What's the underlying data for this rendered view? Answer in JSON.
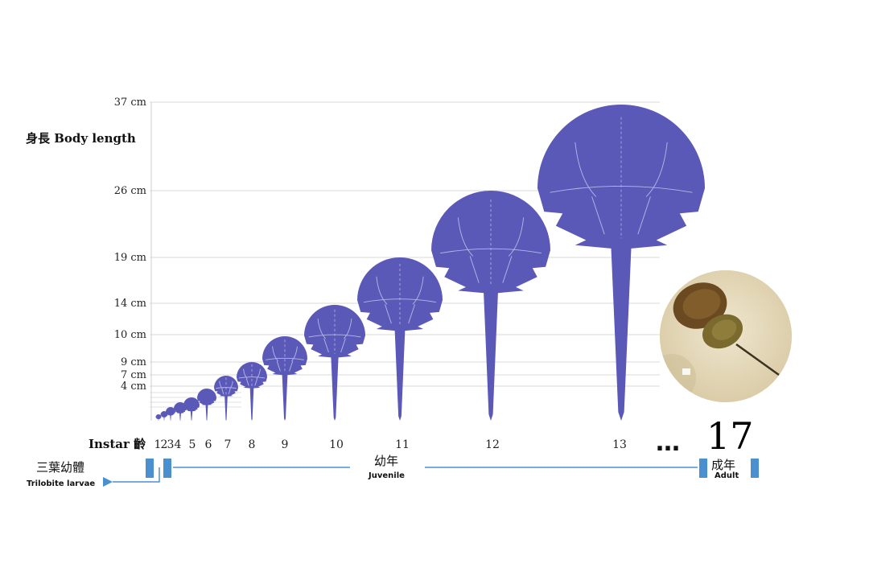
{
  "colors": {
    "crab": "#5b59b8",
    "timeline": "#4a90d0",
    "grid": "#d8d8d8"
  },
  "chart_data": {
    "type": "scatter",
    "title": "",
    "ylabel": "身長 Body length",
    "xlabel": "Instar 齡",
    "y_ticks": [
      {
        "value": 37,
        "label": "37 cm"
      },
      {
        "value": 26,
        "label": "26 cm"
      },
      {
        "value": 19,
        "label": "19 cm"
      },
      {
        "value": 14,
        "label": "14 cm"
      },
      {
        "value": 10,
        "label": "10 cm"
      },
      {
        "value": 9,
        "label": "9 cm"
      },
      {
        "value": 7,
        "label": "7 cm"
      },
      {
        "value": 4,
        "label": "4 cm"
      }
    ],
    "instars": [
      {
        "label": "1",
        "length_cm": 0.6
      },
      {
        "label": "2",
        "length_cm": 0.8
      },
      {
        "label": "3",
        "length_cm": 1.1
      },
      {
        "label": "4",
        "length_cm": 1.5
      },
      {
        "label": "5",
        "length_cm": 2.0
      },
      {
        "label": "6",
        "length_cm": 2.7
      },
      {
        "label": "7",
        "length_cm": 3.6
      },
      {
        "label": "8",
        "length_cm": 4.8
      },
      {
        "label": "9",
        "length_cm": 6.5
      },
      {
        "label": "10",
        "length_cm": 8.7
      },
      {
        "label": "11",
        "length_cm": 12.0
      },
      {
        "label": "12",
        "length_cm": 17.0
      },
      {
        "label": "13",
        "length_cm": 24.0
      }
    ],
    "ellipsis": "…",
    "final_instar": "17",
    "stages": [
      {
        "cn": "三葉幼體",
        "en": "Trilobite larvae"
      },
      {
        "cn": "幼年",
        "en": "Juvenile"
      },
      {
        "cn": "成年",
        "en": "Adult"
      }
    ]
  }
}
